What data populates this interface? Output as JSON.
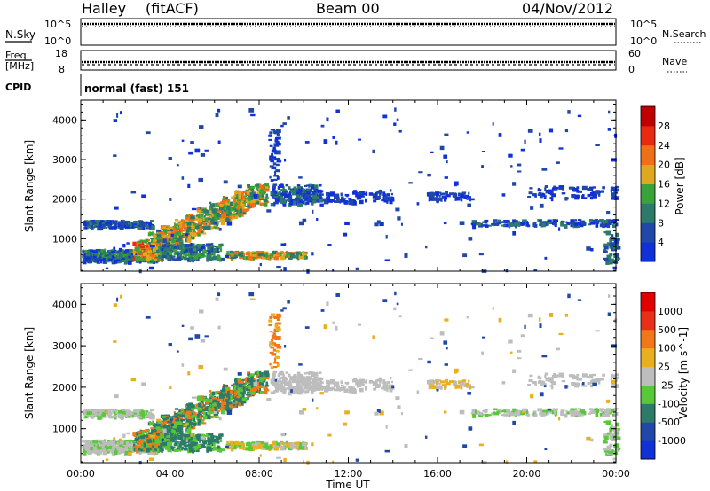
{
  "header": {
    "station": "Halley",
    "algorithm": "(fitACF)",
    "beam": "Beam 00",
    "date": "04/Nov/2012"
  },
  "noise_panel": {
    "left_label": "N.Sky",
    "right_label": "N.Search",
    "left_ticks": [
      "10^5",
      "10^0"
    ],
    "right_ticks": [
      "10^5",
      "10^0"
    ]
  },
  "freq_panel": {
    "left_label_line1": "Freq.",
    "left_label_line2": "[MHz]",
    "right_label": "Nave",
    "left_ticks": [
      "18",
      "8"
    ],
    "right_ticks": [
      "60",
      "0"
    ]
  },
  "cpid": {
    "label": "CPID",
    "text": "normal (fast) 151"
  },
  "chart_data": [
    {
      "type": "heatmap",
      "name": "power",
      "ylabel": "Slant Range [km]",
      "ylim": [
        180,
        4500
      ],
      "yticks": [
        "1000",
        "2000",
        "3000",
        "4000"
      ],
      "colorbar_label": "Power [dB]",
      "colorbar_ticks": [
        "4",
        "8",
        "12",
        "16",
        "20",
        "24",
        "28"
      ],
      "colorbar_colors": [
        "#1030d8",
        "#2048a8",
        "#2e7a6a",
        "#3aa23a",
        "#e0a820",
        "#f07018",
        "#e82a10",
        "#c00000"
      ]
    },
    {
      "type": "heatmap",
      "name": "velocity",
      "ylabel": "Slant Range [km]",
      "ylim": [
        180,
        4500
      ],
      "yticks": [
        "1000",
        "2000",
        "3000",
        "4000"
      ],
      "xlabel": "Time UT",
      "xticks": [
        "00:00",
        "04:00",
        "08:00",
        "12:00",
        "16:00",
        "20:00",
        "00:00"
      ],
      "colorbar_label": "Velocity [m s^-1]",
      "colorbar_ticks": [
        "1000",
        "500",
        "100",
        "25",
        "-25",
        "-100",
        "-500",
        "-1000"
      ],
      "colorbar_colors": [
        "#1030d8",
        "#2048a8",
        "#2e7a6a",
        "#58c838",
        "#bdbdbd",
        "#e8b020",
        "#f07818",
        "#e83018",
        "#e00000"
      ]
    }
  ]
}
